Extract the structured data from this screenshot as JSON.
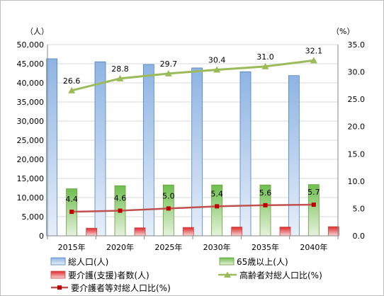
{
  "chart_data": {
    "type": "bar",
    "categories": [
      "2015年",
      "2020年",
      "2025年",
      "2030年",
      "2035年",
      "2040年"
    ],
    "left_unit": "（人）",
    "right_unit": "（%）",
    "ylim_left": [
      0,
      50000
    ],
    "ylim_right": [
      0,
      35
    ],
    "yticks_left": [
      "0",
      "5,000",
      "10,000",
      "15,000",
      "20,000",
      "25,000",
      "30,000",
      "35,000",
      "40,000",
      "45,000",
      "50,000"
    ],
    "yticks_right": [
      "0.0",
      "5.0",
      "10.0",
      "15.0",
      "20.0",
      "25.0",
      "30.0",
      "35.0"
    ],
    "grid": true,
    "legend_position": "bottom",
    "series": [
      {
        "name": "総人口(人)",
        "kind": "bar",
        "axis": "left",
        "color": "#4f81bd",
        "values": [
          46300,
          45500,
          44800,
          43900,
          42900,
          41900
        ]
      },
      {
        "name": "65歳以上(人)",
        "kind": "bar",
        "axis": "left",
        "color": "#9bbb59",
        "values": [
          12300,
          13100,
          13300,
          13300,
          13300,
          13400
        ]
      },
      {
        "name": "要介護(支援)者数(人)",
        "kind": "bar",
        "axis": "left",
        "color": "#c0504d",
        "values": [
          2000,
          2100,
          2200,
          2300,
          2300,
          2400
        ]
      },
      {
        "name": "高齢者対総人口比(%)",
        "kind": "line",
        "axis": "right",
        "color": "#9bbb59",
        "marker": "triangle",
        "values": [
          26.6,
          28.8,
          29.7,
          30.4,
          31.0,
          32.1
        ],
        "labels": [
          "26.6",
          "28.8",
          "29.7",
          "30.4",
          "31.0",
          "32.1"
        ]
      },
      {
        "name": "要介護者等対総人口比(%)",
        "kind": "line",
        "axis": "right",
        "color": "#c0504d",
        "marker": "square",
        "values": [
          4.4,
          4.6,
          5.0,
          5.4,
          5.6,
          5.7
        ],
        "labels": [
          "4.4",
          "4.6",
          "5.0",
          "5.4",
          "5.6",
          "5.7"
        ]
      }
    ]
  }
}
